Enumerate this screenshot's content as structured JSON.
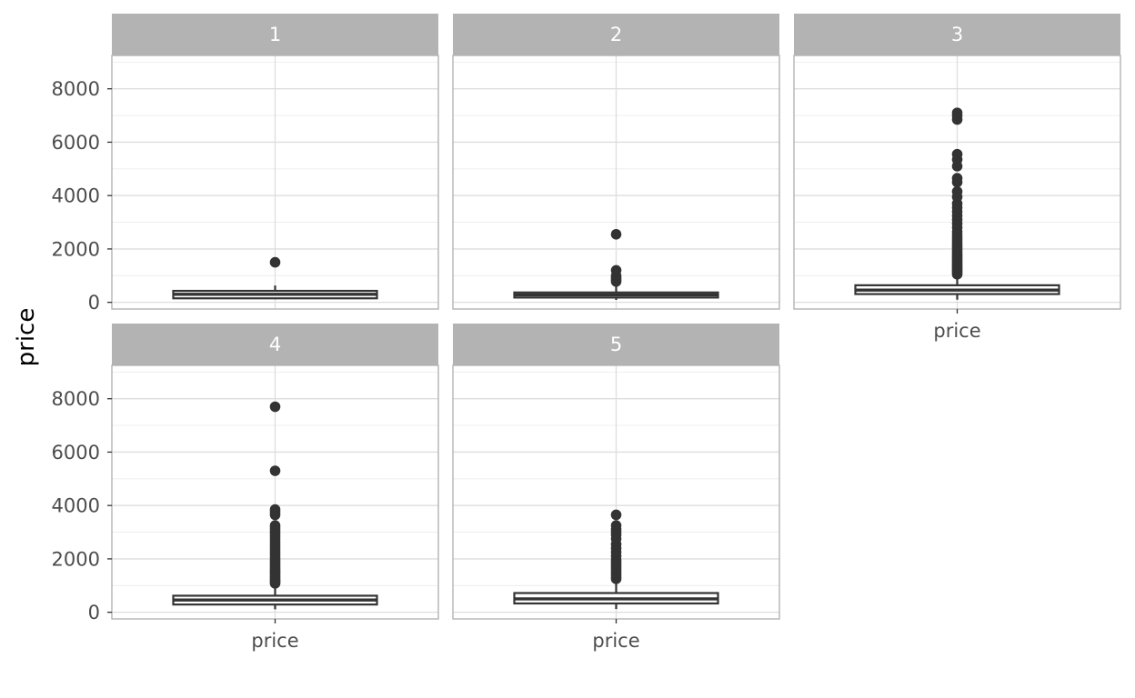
{
  "chart_data": {
    "type": "boxplot",
    "layout": "facet_wrap",
    "ylabel": "price",
    "xlabel": "",
    "x_category": "price",
    "ylim": [
      -250,
      9250
    ],
    "yticks": [
      0,
      2000,
      4000,
      6000,
      8000
    ],
    "ytick_labels": [
      "0",
      "2000",
      "4000",
      "6000",
      "8000"
    ],
    "grid": true,
    "box_color": "#333333",
    "panels": [
      {
        "label": "1",
        "box": {
          "whisker_low": 120,
          "q1": 150,
          "median": 300,
          "q3": 430,
          "whisker_high": 630
        },
        "outliers": [
          1500
        ]
      },
      {
        "label": "2",
        "box": {
          "whisker_low": 90,
          "q1": 180,
          "median": 280,
          "q3": 370,
          "whisker_high": 700
        },
        "outliers": [
          780,
          850,
          920,
          1000,
          1200,
          2550
        ]
      },
      {
        "label": "3",
        "box": {
          "whisker_low": 100,
          "q1": 310,
          "median": 460,
          "q3": 640,
          "whisker_high": 1030
        },
        "outliers": [
          1050,
          1100,
          1150,
          1200,
          1250,
          1300,
          1360,
          1420,
          1480,
          1540,
          1600,
          1660,
          1720,
          1780,
          1850,
          1920,
          2000,
          2080,
          2160,
          2250,
          2350,
          2450,
          2550,
          2650,
          2800,
          2950,
          3100,
          3250,
          3400,
          3550,
          3700,
          3950,
          4150,
          4500,
          4650,
          5100,
          5350,
          5550,
          6850,
          7000,
          7100
        ]
      },
      {
        "label": "4",
        "box": {
          "whisker_low": 110,
          "q1": 290,
          "median": 460,
          "q3": 620,
          "whisker_high": 1050
        },
        "outliers": [
          1080,
          1130,
          1180,
          1230,
          1290,
          1350,
          1410,
          1470,
          1530,
          1590,
          1660,
          1730,
          1800,
          1880,
          1960,
          2050,
          2150,
          2250,
          2350,
          2450,
          2550,
          2650,
          2750,
          2850,
          2950,
          3050,
          3150,
          3250,
          3650,
          3750,
          3850,
          5300,
          7700
        ]
      },
      {
        "label": "5",
        "box": {
          "whisker_low": 120,
          "q1": 330,
          "median": 500,
          "q3": 720,
          "whisker_high": 1200
        },
        "outliers": [
          1250,
          1320,
          1400,
          1480,
          1560,
          1640,
          1720,
          1800,
          1880,
          1960,
          2100,
          2250,
          2400,
          2550,
          2750,
          2900,
          3000,
          3100,
          3250,
          3650
        ]
      }
    ]
  }
}
